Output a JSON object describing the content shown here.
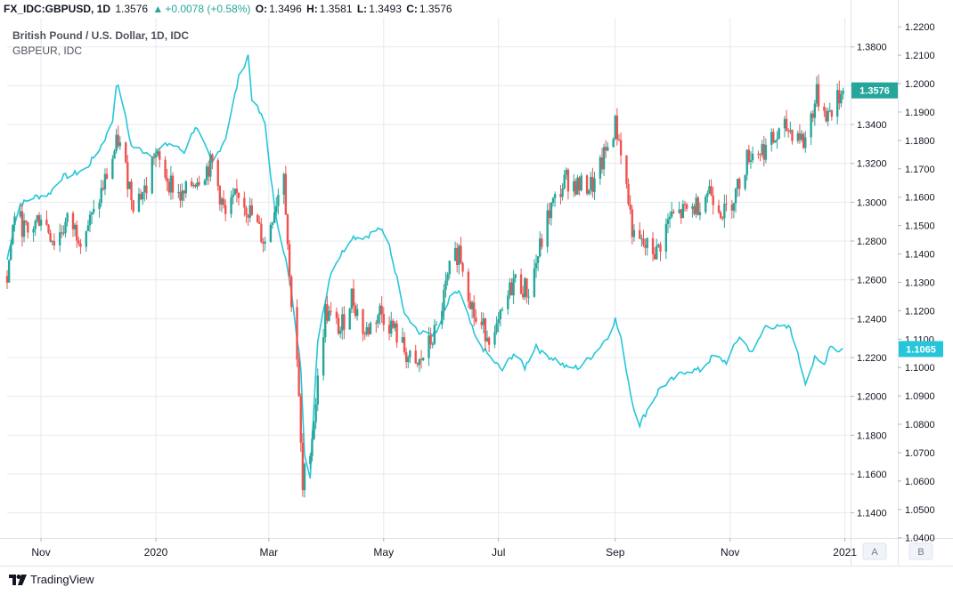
{
  "header": {
    "symbol": "FX_IDC:GBPUSD, 1D",
    "last": "1.3576",
    "change": "+0.0078 (+0.58%)",
    "open_label": "O:",
    "open": "1.3496",
    "high_label": "H:",
    "high": "1.3581",
    "low_label": "L:",
    "low": "1.3493",
    "close_label": "C:",
    "close": "1.3576",
    "up_arrow_icon": "triangle-up-icon"
  },
  "legend": {
    "main": "British Pound / U.S. Dollar, 1D, IDC",
    "compare": "GBPEUR, IDC"
  },
  "scale_buttons": {
    "a": "A",
    "b": "B"
  },
  "brand": {
    "name": "TradingView",
    "icon": "tradingview-logo-icon"
  },
  "colors": {
    "up": "#26a69a",
    "down": "#ef5350",
    "compare": "#26c6da",
    "grid": "#e6e9ef"
  },
  "chart_data": {
    "type": "candlestick",
    "title": "British Pound / U.S. Dollar, 1D, IDC",
    "left_axis": {
      "ticks": [
        "1.3800",
        "1.3600",
        "1.3400",
        "1.3200",
        "1.3000",
        "1.2800",
        "1.2600",
        "1.2400",
        "1.2200",
        "1.2000",
        "1.1800",
        "1.1600",
        "1.1400"
      ],
      "range": [
        1.127,
        1.395
      ]
    },
    "right_axis": {
      "ticks": [
        "1.2200",
        "1.2100",
        "1.2000",
        "1.1900",
        "1.1800",
        "1.1700",
        "1.1600",
        "1.1500",
        "1.1400",
        "1.1300",
        "1.1200",
        "1.1100",
        "1.1000",
        "1.0900",
        "1.0800",
        "1.0700",
        "1.0600",
        "1.0500",
        "1.0400"
      ],
      "range": [
        1.0399,
        1.2232
      ]
    },
    "x_ticks": [
      {
        "label": "Nov",
        "date": "2019-11-01"
      },
      {
        "label": "2020",
        "date": "2020-01-01"
      },
      {
        "label": "Mar",
        "date": "2020-03-01"
      },
      {
        "label": "May",
        "date": "2020-05-01"
      },
      {
        "label": "Jul",
        "date": "2020-07-01"
      },
      {
        "label": "Sep",
        "date": "2020-09-01"
      },
      {
        "label": "Nov",
        "date": "2020-11-01"
      },
      {
        "label": "2021",
        "date": "2021-01-01"
      }
    ],
    "grid": true,
    "series": [
      {
        "name": "GBPUSD",
        "kind": "candlestick",
        "last_value_label": "1.3576",
        "keypoints": [
          [
            "2019-10-14",
            1.262
          ],
          [
            "2019-10-18",
            1.295
          ],
          [
            "2019-10-25",
            1.283
          ],
          [
            "2019-11-01",
            1.294
          ],
          [
            "2019-11-08",
            1.28
          ],
          [
            "2019-11-15",
            1.29
          ],
          [
            "2019-11-22",
            1.283
          ],
          [
            "2019-11-29",
            1.293
          ],
          [
            "2019-12-06",
            1.314
          ],
          [
            "2019-12-12",
            1.332
          ],
          [
            "2019-12-20",
            1.301
          ],
          [
            "2019-12-27",
            1.307
          ],
          [
            "2019-12-31",
            1.325
          ],
          [
            "2020-01-08",
            1.311
          ],
          [
            "2020-01-15",
            1.302
          ],
          [
            "2020-01-22",
            1.312
          ],
          [
            "2020-01-31",
            1.32
          ],
          [
            "2020-02-07",
            1.292
          ],
          [
            "2020-02-14",
            1.305
          ],
          [
            "2020-02-21",
            1.293
          ],
          [
            "2020-02-28",
            1.279
          ],
          [
            "2020-03-06",
            1.305
          ],
          [
            "2020-03-09",
            1.318
          ],
          [
            "2020-03-12",
            1.26
          ],
          [
            "2020-03-16",
            1.22
          ],
          [
            "2020-03-19",
            1.15
          ],
          [
            "2020-03-20",
            1.16
          ],
          [
            "2020-03-24",
            1.18
          ],
          [
            "2020-03-31",
            1.244
          ],
          [
            "2020-04-08",
            1.234
          ],
          [
            "2020-04-14",
            1.252
          ],
          [
            "2020-04-21",
            1.232
          ],
          [
            "2020-04-29",
            1.244
          ],
          [
            "2020-05-06",
            1.235
          ],
          [
            "2020-05-14",
            1.22
          ],
          [
            "2020-05-18",
            1.213
          ],
          [
            "2020-05-29",
            1.234
          ],
          [
            "2020-06-05",
            1.264
          ],
          [
            "2020-06-10",
            1.276
          ],
          [
            "2020-06-19",
            1.238
          ],
          [
            "2020-06-29",
            1.23
          ],
          [
            "2020-07-09",
            1.26
          ],
          [
            "2020-07-17",
            1.254
          ],
          [
            "2020-07-28",
            1.295
          ],
          [
            "2020-08-06",
            1.312
          ],
          [
            "2020-08-13",
            1.308
          ],
          [
            "2020-08-21",
            1.309
          ],
          [
            "2020-09-01",
            1.34
          ],
          [
            "2020-09-04",
            1.328
          ],
          [
            "2020-09-11",
            1.28
          ],
          [
            "2020-09-23",
            1.274
          ],
          [
            "2020-09-30",
            1.292
          ],
          [
            "2020-10-08",
            1.295
          ],
          [
            "2020-10-14",
            1.298
          ],
          [
            "2020-10-21",
            1.307
          ],
          [
            "2020-10-29",
            1.294
          ],
          [
            "2020-11-04",
            1.305
          ],
          [
            "2020-11-11",
            1.325
          ],
          [
            "2020-11-20",
            1.328
          ],
          [
            "2020-12-01",
            1.338
          ],
          [
            "2020-12-08",
            1.335
          ],
          [
            "2020-12-10",
            1.33
          ],
          [
            "2020-12-17",
            1.355
          ],
          [
            "2020-12-23",
            1.345
          ],
          [
            "2020-12-31",
            1.3576
          ]
        ]
      },
      {
        "name": "GBPEUR",
        "kind": "line",
        "last_value_label": "1.1065",
        "keypoints": [
          [
            "2019-10-14",
            1.138
          ],
          [
            "2019-10-20",
            1.157
          ],
          [
            "2019-10-28",
            1.16
          ],
          [
            "2019-11-05",
            1.161
          ],
          [
            "2019-11-12",
            1.167
          ],
          [
            "2019-11-18",
            1.168
          ],
          [
            "2019-11-25",
            1.17
          ],
          [
            "2019-12-02",
            1.177
          ],
          [
            "2019-12-06",
            1.182
          ],
          [
            "2019-12-09",
            1.187
          ],
          [
            "2019-12-11",
            1.2
          ],
          [
            "2019-12-13",
            1.197
          ],
          [
            "2019-12-19",
            1.178
          ],
          [
            "2019-12-30",
            1.175
          ],
          [
            "2020-01-08",
            1.179
          ],
          [
            "2020-01-16",
            1.176
          ],
          [
            "2020-01-22",
            1.185
          ],
          [
            "2020-01-31",
            1.172
          ],
          [
            "2020-02-07",
            1.181
          ],
          [
            "2020-02-14",
            1.202
          ],
          [
            "2020-02-19",
            1.21
          ],
          [
            "2020-02-21",
            1.195
          ],
          [
            "2020-02-28",
            1.186
          ],
          [
            "2020-03-04",
            1.156
          ],
          [
            "2020-03-10",
            1.138
          ],
          [
            "2020-03-13",
            1.126
          ],
          [
            "2020-03-18",
            1.1
          ],
          [
            "2020-03-20",
            1.07
          ],
          [
            "2020-03-23",
            1.062
          ],
          [
            "2020-03-27",
            1.11
          ],
          [
            "2020-04-03",
            1.134
          ],
          [
            "2020-04-14",
            1.146
          ],
          [
            "2020-04-21",
            1.146
          ],
          [
            "2020-04-29",
            1.149
          ],
          [
            "2020-05-04",
            1.143
          ],
          [
            "2020-05-12",
            1.12
          ],
          [
            "2020-05-20",
            1.112
          ],
          [
            "2020-05-29",
            1.112
          ],
          [
            "2020-06-05",
            1.124
          ],
          [
            "2020-06-10",
            1.127
          ],
          [
            "2020-06-19",
            1.11
          ],
          [
            "2020-06-26",
            1.104
          ],
          [
            "2020-07-03",
            1.099
          ],
          [
            "2020-07-09",
            1.105
          ],
          [
            "2020-07-15",
            1.1
          ],
          [
            "2020-07-21",
            1.108
          ],
          [
            "2020-07-24",
            1.105
          ],
          [
            "2020-07-31",
            1.103
          ],
          [
            "2020-08-06",
            1.1
          ],
          [
            "2020-08-13",
            1.1
          ],
          [
            "2020-08-21",
            1.105
          ],
          [
            "2020-08-28",
            1.111
          ],
          [
            "2020-09-01",
            1.117
          ],
          [
            "2020-09-04",
            1.11
          ],
          [
            "2020-09-10",
            1.088
          ],
          [
            "2020-09-14",
            1.08
          ],
          [
            "2020-09-18",
            1.085
          ],
          [
            "2020-09-25",
            1.093
          ],
          [
            "2020-10-02",
            1.096
          ],
          [
            "2020-10-09",
            1.099
          ],
          [
            "2020-10-16",
            1.099
          ],
          [
            "2020-10-23",
            1.104
          ],
          [
            "2020-10-30",
            1.102
          ],
          [
            "2020-11-06",
            1.111
          ],
          [
            "2020-11-13",
            1.105
          ],
          [
            "2020-11-20",
            1.115
          ],
          [
            "2020-11-27",
            1.114
          ],
          [
            "2020-12-03",
            1.114
          ],
          [
            "2020-12-08",
            1.102
          ],
          [
            "2020-12-11",
            1.095
          ],
          [
            "2020-12-16",
            1.103
          ],
          [
            "2020-12-21",
            1.101
          ],
          [
            "2020-12-24",
            1.108
          ],
          [
            "2020-12-28",
            1.106
          ],
          [
            "2020-12-31",
            1.1065
          ]
        ]
      }
    ]
  }
}
